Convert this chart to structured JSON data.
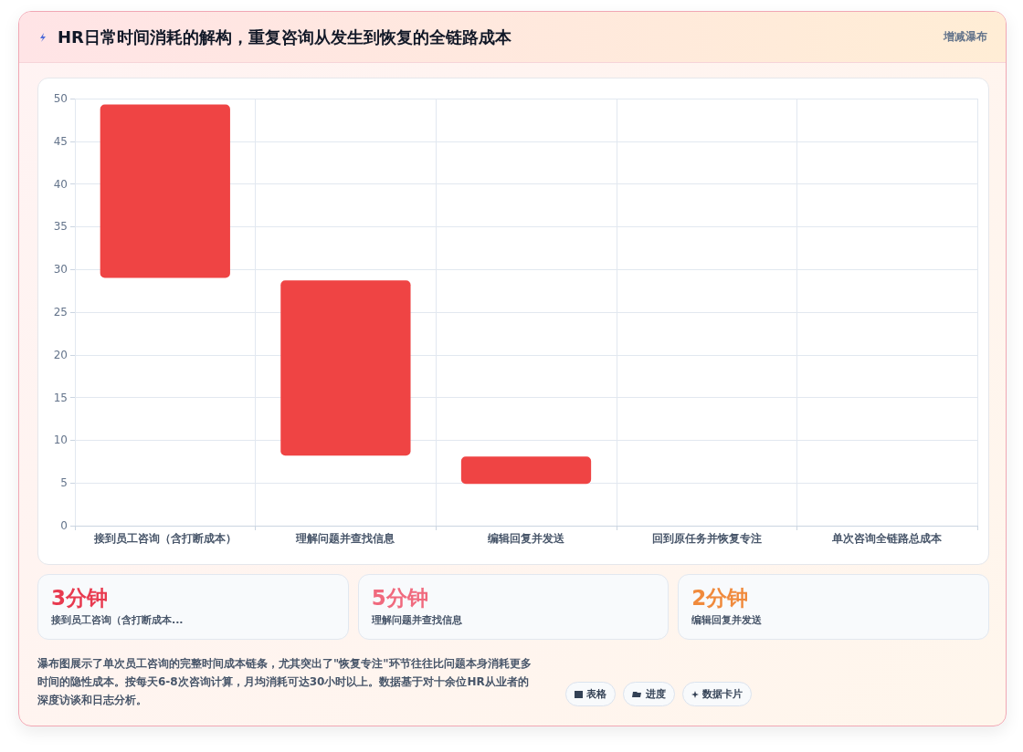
{
  "chart_data": {
    "type": "bar",
    "title": "HR日常时间消耗的解构，重复咨询从发生到恢复的全链路成本",
    "categories": [
      "接到员工咨询（含打断成本）",
      "理解问题并查找信息",
      "编辑回复并发送",
      "回到原任务并恢复专注",
      "单次咨询全链路总成本"
    ],
    "values": [
      20.3,
      20.5,
      3.2,
      null,
      null
    ],
    "base": [
      29,
      8.2,
      4.9,
      null,
      null
    ],
    "color": "#ef4444",
    "ylim": [
      0,
      50
    ],
    "yticks": [
      0,
      5,
      10,
      15,
      20,
      25,
      30,
      35,
      40,
      45,
      50
    ],
    "grid": true,
    "annotations": [
      "增减瀑布",
      "3分钟",
      "接到员工咨询（含打断成本...",
      "5分钟",
      "理解问题并查找信息",
      "2分钟",
      "编辑回复并发送",
      "瀑布图展示了单次员工咨询的完整时间成本链条，尤其突出了\"恢复专注\"环节往往比问题本身消耗更多时间的隐性成本。按每天6-8次咨询计算，月均消耗可达30小时以上。数据基于对十余位HR从业者的深度访谈和日志分析。",
      "表格",
      "进度",
      "数据卡片"
    ]
  }
}
